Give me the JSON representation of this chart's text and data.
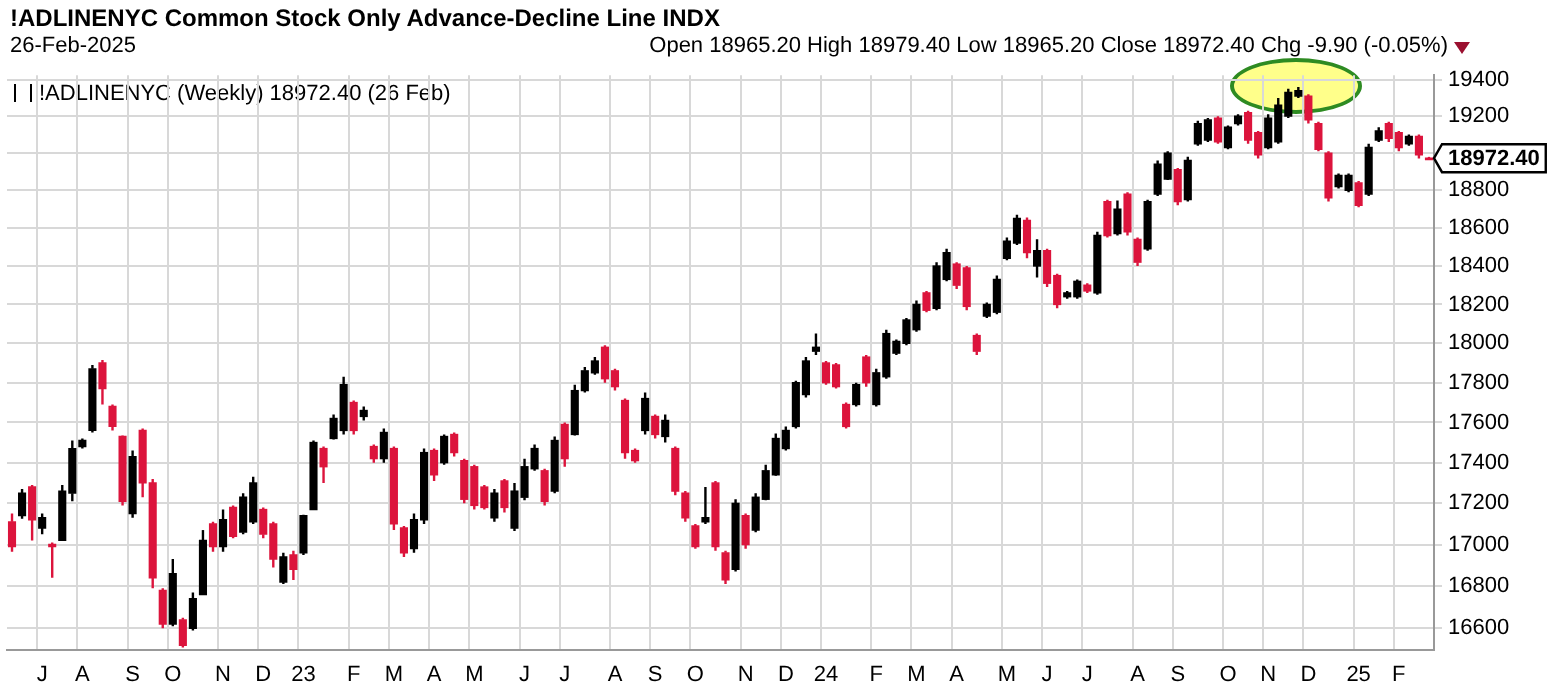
{
  "chart_data": {
    "type": "candlestick",
    "title": "!ADLINENYC Common Stock Only Advance-Decline Line INDX",
    "annotations": [
      "26-Feb-2025",
      "Open 18965.20 High 18979.40 Low 18965.20 Close 18972.40 Chg -9.90 (-0.05%)",
      "18972.40"
    ],
    "categories": [
      null,
      null,
      null,
      "J",
      null,
      null,
      null,
      "A",
      null,
      null,
      null,
      null,
      "S",
      null,
      null,
      null,
      "O",
      null,
      null,
      null,
      null,
      "N",
      null,
      null,
      null,
      "D",
      null,
      null,
      null,
      "23",
      null,
      null,
      null,
      null,
      "F",
      null,
      null,
      null,
      "M",
      null,
      null,
      null,
      "A",
      null,
      null,
      null,
      "M",
      null,
      null,
      null,
      null,
      "J",
      null,
      null,
      null,
      "J",
      null,
      null,
      null,
      null,
      "A",
      null,
      null,
      null,
      "S",
      null,
      null,
      null,
      "O",
      null,
      null,
      null,
      null,
      "N",
      null,
      null,
      null,
      "D",
      null,
      null,
      null,
      "24",
      null,
      null,
      null,
      null,
      "F",
      null,
      null,
      null,
      "M",
      null,
      null,
      null,
      "A",
      null,
      null,
      null,
      null,
      "M",
      null,
      null,
      null,
      "J",
      null,
      null,
      null,
      "J",
      null,
      null,
      null,
      null,
      "A",
      null,
      null,
      null,
      "S",
      null,
      null,
      null,
      null,
      "O",
      null,
      null,
      null,
      "N",
      null,
      null,
      null,
      "D",
      null,
      null,
      null,
      null,
      "25",
      null,
      null,
      null,
      "F",
      null,
      null,
      null
    ],
    "series": [
      {
        "name": "!ADLINENYC (Weekly) 18972.40 (26 Feb)",
        "color": "#000000",
        "ohlc": [
          [
            17110,
            17150,
            16965,
            16990
          ],
          [
            17140,
            17270,
            17125,
            17250
          ],
          [
            17280,
            17290,
            17020,
            17120
          ],
          [
            17080,
            17150,
            17050,
            17130
          ],
          [
            17000,
            17010,
            16840,
            16990
          ],
          [
            17020,
            17290,
            17020,
            17260
          ],
          [
            17250,
            17510,
            17210,
            17470
          ],
          [
            17480,
            17520,
            17470,
            17510
          ],
          [
            17560,
            17890,
            17550,
            17870
          ],
          [
            17900,
            17915,
            17690,
            17770
          ],
          [
            17680,
            17690,
            17560,
            17580
          ],
          [
            17530,
            17535,
            17190,
            17210
          ],
          [
            17150,
            17460,
            17130,
            17430
          ],
          [
            17560,
            17570,
            17230,
            17300
          ],
          [
            17300,
            17320,
            16790,
            16840
          ],
          [
            16780,
            16790,
            16600,
            16620
          ],
          [
            16620,
            16930,
            16610,
            16860
          ],
          [
            16640,
            16650,
            16510,
            16520
          ],
          [
            16600,
            16770,
            16590,
            16740
          ],
          [
            16760,
            17070,
            16760,
            17020
          ],
          [
            17100,
            17110,
            16965,
            16990
          ],
          [
            16990,
            17170,
            16965,
            17120
          ],
          [
            17180,
            17190,
            17030,
            17040
          ],
          [
            17060,
            17250,
            17050,
            17230
          ],
          [
            17110,
            17330,
            17100,
            17300
          ],
          [
            17170,
            17180,
            17030,
            17050
          ],
          [
            17100,
            17110,
            16890,
            16930
          ],
          [
            16820,
            16960,
            16810,
            16940
          ],
          [
            16950,
            16970,
            16830,
            16880
          ],
          [
            16960,
            17145,
            16950,
            17140
          ],
          [
            17170,
            17510,
            17170,
            17500
          ],
          [
            17470,
            17480,
            17300,
            17380
          ],
          [
            17520,
            17640,
            17515,
            17620
          ],
          [
            17560,
            17830,
            17540,
            17790
          ],
          [
            17700,
            17710,
            17540,
            17560
          ],
          [
            17630,
            17680,
            17610,
            17660
          ],
          [
            17480,
            17490,
            17400,
            17420
          ],
          [
            17420,
            17570,
            17400,
            17550
          ],
          [
            17470,
            17480,
            17070,
            17100
          ],
          [
            17080,
            17090,
            16940,
            16960
          ],
          [
            16980,
            17150,
            16960,
            17120
          ],
          [
            17120,
            17470,
            17100,
            17450
          ],
          [
            17460,
            17470,
            17310,
            17340
          ],
          [
            17400,
            17540,
            17390,
            17530
          ],
          [
            17540,
            17550,
            17430,
            17450
          ],
          [
            17410,
            17420,
            17200,
            17220
          ],
          [
            17380,
            17390,
            17170,
            17190
          ],
          [
            17280,
            17290,
            17170,
            17180
          ],
          [
            17130,
            17270,
            17110,
            17250
          ],
          [
            17310,
            17320,
            17155,
            17180
          ],
          [
            17080,
            17300,
            17065,
            17260
          ],
          [
            17230,
            17420,
            17215,
            17380
          ],
          [
            17370,
            17490,
            17360,
            17470
          ],
          [
            17360,
            17370,
            17190,
            17210
          ],
          [
            17260,
            17530,
            17250,
            17510
          ],
          [
            17590,
            17600,
            17380,
            17420
          ],
          [
            17540,
            17790,
            17535,
            17760
          ],
          [
            17760,
            17880,
            17750,
            17860
          ],
          [
            17850,
            17930,
            17840,
            17910
          ],
          [
            17980,
            17990,
            17800,
            17820
          ],
          [
            17860,
            17870,
            17760,
            17780
          ],
          [
            17710,
            17720,
            17420,
            17450
          ],
          [
            17460,
            17470,
            17400,
            17410
          ],
          [
            17560,
            17750,
            17540,
            17720
          ],
          [
            17630,
            17640,
            17520,
            17540
          ],
          [
            17530,
            17640,
            17500,
            17610
          ],
          [
            17470,
            17480,
            17240,
            17260
          ],
          [
            17250,
            17260,
            17110,
            17130
          ],
          [
            17090,
            17100,
            16980,
            16990
          ],
          [
            17110,
            17280,
            17100,
            17130
          ],
          [
            17300,
            17310,
            16970,
            16990
          ],
          [
            16960,
            16970,
            16810,
            16830
          ],
          [
            16880,
            17220,
            16870,
            17200
          ],
          [
            17140,
            17150,
            16980,
            17000
          ],
          [
            17070,
            17250,
            17060,
            17230
          ],
          [
            17220,
            17390,
            17215,
            17360
          ],
          [
            17340,
            17545,
            17335,
            17520
          ],
          [
            17470,
            17580,
            17460,
            17560
          ],
          [
            17580,
            17810,
            17570,
            17800
          ],
          [
            17740,
            17930,
            17725,
            17910
          ],
          [
            17960,
            18050,
            17940,
            17980
          ],
          [
            17900,
            17910,
            17790,
            17800
          ],
          [
            17890,
            17900,
            17770,
            17780
          ],
          [
            17690,
            17700,
            17570,
            17580
          ],
          [
            17690,
            17800,
            17680,
            17790
          ],
          [
            17930,
            17940,
            17780,
            17800
          ],
          [
            17690,
            17870,
            17680,
            17850
          ],
          [
            17830,
            18070,
            17820,
            18050
          ],
          [
            17950,
            18020,
            17940,
            18010
          ],
          [
            18000,
            18130,
            17990,
            18120
          ],
          [
            18070,
            18220,
            18060,
            18200
          ],
          [
            18260,
            18270,
            18160,
            18170
          ],
          [
            18180,
            18420,
            18170,
            18400
          ],
          [
            18330,
            18490,
            18320,
            18470
          ],
          [
            18410,
            18420,
            18280,
            18300
          ],
          [
            18390,
            18400,
            18170,
            18190
          ],
          [
            18040,
            18050,
            17940,
            17960
          ],
          [
            18140,
            18210,
            18130,
            18200
          ],
          [
            18160,
            18350,
            18150,
            18330
          ],
          [
            18440,
            18550,
            18430,
            18530
          ],
          [
            18520,
            18670,
            18510,
            18650
          ],
          [
            18640,
            18655,
            18440,
            18470
          ],
          [
            18400,
            18540,
            18340,
            18480
          ],
          [
            18480,
            18490,
            18290,
            18310
          ],
          [
            18350,
            18360,
            18180,
            18200
          ],
          [
            18240,
            18270,
            18230,
            18260
          ],
          [
            18240,
            18330,
            18230,
            18320
          ],
          [
            18300,
            18310,
            18260,
            18270
          ],
          [
            18260,
            18580,
            18250,
            18560
          ],
          [
            18740,
            18750,
            18550,
            18560
          ],
          [
            18570,
            18745,
            18560,
            18700
          ],
          [
            18780,
            18790,
            18560,
            18580
          ],
          [
            18540,
            18550,
            18400,
            18420
          ],
          [
            18490,
            18750,
            18480,
            18740
          ],
          [
            18780,
            18960,
            18770,
            18940
          ],
          [
            18860,
            19010,
            18855,
            19000
          ],
          [
            18910,
            18920,
            18720,
            18740
          ],
          [
            18750,
            18980,
            18740,
            18960
          ],
          [
            19050,
            19175,
            19040,
            19160
          ],
          [
            19070,
            19190,
            19060,
            19180
          ],
          [
            19190,
            19200,
            19050,
            19060
          ],
          [
            19030,
            19150,
            19020,
            19140
          ],
          [
            19160,
            19210,
            19150,
            19200
          ],
          [
            19220,
            19230,
            19050,
            19070
          ],
          [
            19110,
            19120,
            18970,
            18990
          ],
          [
            19030,
            19210,
            19020,
            19190
          ],
          [
            19060,
            19300,
            19050,
            19260
          ],
          [
            19200,
            19350,
            19190,
            19330
          ],
          [
            19310,
            19360,
            19300,
            19340
          ],
          [
            19310,
            19320,
            19160,
            19180
          ],
          [
            19160,
            19170,
            19010,
            19020
          ],
          [
            19000,
            19010,
            18740,
            18760
          ],
          [
            18820,
            18890,
            18810,
            18880
          ],
          [
            18800,
            18890,
            18790,
            18880
          ],
          [
            18840,
            18850,
            18710,
            18720
          ],
          [
            18780,
            19050,
            18770,
            19030
          ],
          [
            19070,
            19140,
            19060,
            19120
          ],
          [
            19160,
            19170,
            19060,
            19080
          ],
          [
            19110,
            19120,
            19010,
            19030
          ],
          [
            19050,
            19100,
            19040,
            19090
          ],
          [
            19090,
            19100,
            18970,
            18990
          ],
          [
            18965.2,
            18979.4,
            18965.2,
            18972.4
          ]
        ],
        "colors": [
          "#dc143c",
          "#000000",
          "#dc143c",
          "#000000",
          "#dc143c",
          "#000000",
          "#000000",
          "#000000",
          "#000000",
          "#dc143c",
          "#dc143c",
          "#dc143c",
          "#000000",
          "#dc143c",
          "#dc143c",
          "#dc143c",
          "#000000",
          "#dc143c",
          "#000000",
          "#000000",
          "#dc143c",
          "#000000",
          "#dc143c",
          "#000000",
          "#000000",
          "#dc143c",
          "#dc143c",
          "#000000",
          "#dc143c",
          "#000000",
          "#000000",
          "#dc143c",
          "#000000",
          "#000000",
          "#dc143c",
          "#000000",
          "#dc143c",
          "#000000",
          "#dc143c",
          "#dc143c",
          "#000000",
          "#000000",
          "#dc143c",
          "#000000",
          "#dc143c",
          "#dc143c",
          "#dc143c",
          "#dc143c",
          "#000000",
          "#dc143c",
          "#000000",
          "#000000",
          "#000000",
          "#dc143c",
          "#000000",
          "#dc143c",
          "#000000",
          "#000000",
          "#000000",
          "#dc143c",
          "#dc143c",
          "#dc143c",
          "#dc143c",
          "#000000",
          "#dc143c",
          "#000000",
          "#dc143c",
          "#dc143c",
          "#dc143c",
          "#000000",
          "#dc143c",
          "#dc143c",
          "#000000",
          "#dc143c",
          "#000000",
          "#000000",
          "#000000",
          "#000000",
          "#000000",
          "#000000",
          "#000000",
          "#dc143c",
          "#dc143c",
          "#dc143c",
          "#000000",
          "#dc143c",
          "#000000",
          "#000000",
          "#000000",
          "#000000",
          "#000000",
          "#dc143c",
          "#000000",
          "#000000",
          "#dc143c",
          "#dc143c",
          "#dc143c",
          "#000000",
          "#000000",
          "#000000",
          "#000000",
          "#dc143c",
          "#000000",
          "#dc143c",
          "#dc143c",
          "#000000",
          "#000000",
          "#dc143c",
          "#000000",
          "#dc143c",
          "#000000",
          "#dc143c",
          "#dc143c",
          "#000000",
          "#000000",
          "#000000",
          "#dc143c",
          "#000000",
          "#000000",
          "#000000",
          "#dc143c",
          "#000000",
          "#000000",
          "#dc143c",
          "#dc143c",
          "#000000",
          "#000000",
          "#000000",
          "#000000",
          "#dc143c",
          "#dc143c",
          "#dc143c",
          "#000000",
          "#000000",
          "#dc143c",
          "#000000",
          "#000000",
          "#dc143c",
          "#dc143c",
          "#000000",
          "#dc143c",
          "#dc143c"
        ]
      }
    ],
    "log": "y",
    "ylim": [
      16500,
      19425
    ],
    "yticks": [
      16600,
      16800,
      17000,
      17200,
      17400,
      17600,
      17800,
      18000,
      18200,
      18400,
      18600,
      18800,
      {
        "value": 19000,
        "label": null
      },
      19200,
      19400
    ],
    "grid": true,
    "legend": "top left"
  }
}
